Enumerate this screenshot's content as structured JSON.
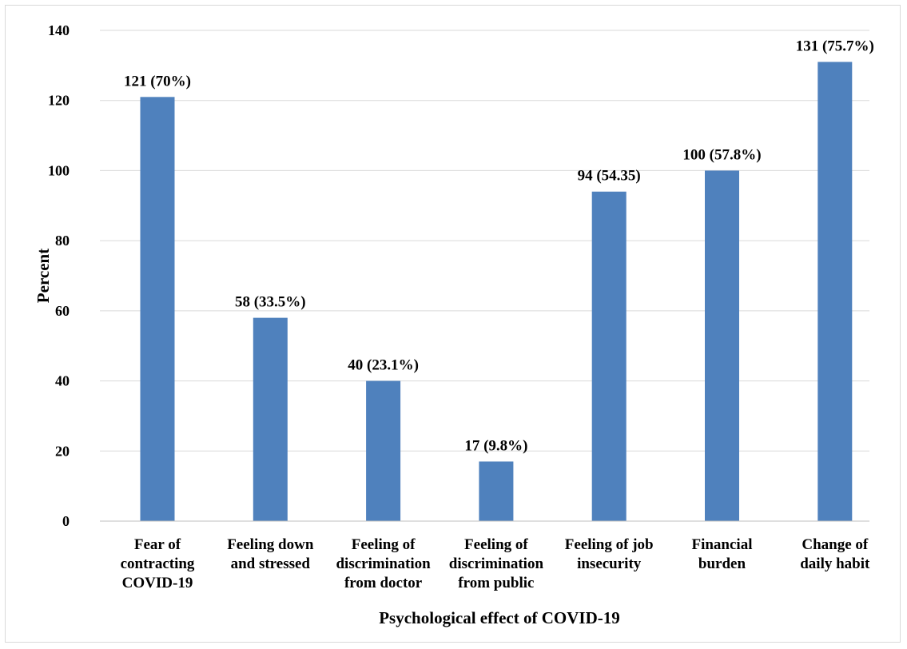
{
  "chart_data": {
    "type": "bar",
    "title": "",
    "xlabel": "Psychological effect of COVID-19",
    "ylabel": "Percent",
    "ylim": [
      0,
      140
    ],
    "yticks": [
      0,
      20,
      40,
      60,
      80,
      100,
      120,
      140
    ],
    "grid": true,
    "legend": "none",
    "bar_color": "#4f81bd",
    "categories": [
      "Fear of contracting COVID-19",
      "Feeling down and stressed",
      "Feeling of discrimination from doctor",
      "Feeling of discrimination from public",
      "Feeling of job insecurity",
      "Financial burden",
      "Change of daily habit"
    ],
    "category_lines": [
      [
        "Fear of",
        "contracting",
        "COVID-19"
      ],
      [
        "Feeling down",
        "and stressed"
      ],
      [
        "Feeling of",
        "discrimination",
        "from doctor"
      ],
      [
        "Feeling of",
        "discrimination",
        "from public"
      ],
      [
        "Feeling of job",
        "insecurity"
      ],
      [
        "Financial",
        "burden"
      ],
      [
        "Change of",
        "daily habit"
      ]
    ],
    "values": [
      121,
      58,
      40,
      17,
      94,
      100,
      131
    ],
    "data_labels": [
      "121 (70%)",
      "58 (33.5%)",
      "40 (23.1%)",
      "17 (9.8%)",
      "94 (54.35)",
      "100 (57.8%)",
      "131 (75.7%)"
    ]
  }
}
